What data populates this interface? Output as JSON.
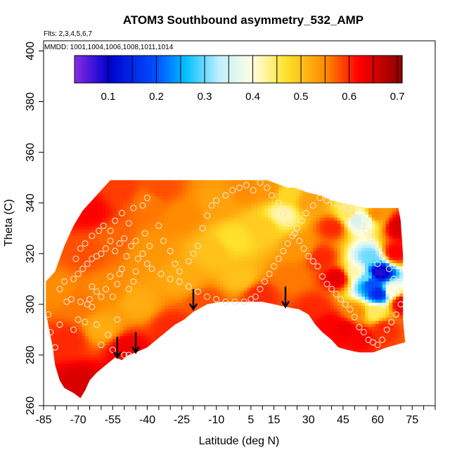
{
  "chart_data": {
    "type": "heatmap",
    "title": "ATOM3 Southbound asymmetry_532_AMP",
    "flights_label": "Flts: 2,3,4,5,6,7",
    "dates_label": "MMDD: 1001,1004,1006,1008,1011,1014",
    "xlabel": "Latitude (deg N)",
    "ylabel": "Theta (C)",
    "xlim": [
      -85,
      85
    ],
    "ylim": [
      260,
      404
    ],
    "x_ticks": [
      -85,
      -70,
      -55,
      -40,
      -25,
      -10,
      5,
      15,
      30,
      45,
      60,
      75
    ],
    "x_tick_labels": [
      "-85",
      "-70",
      "-55",
      "-40",
      "-25",
      "-10",
      "5",
      "15",
      "30",
      "45",
      "60",
      "75"
    ],
    "y_ticks": [
      260,
      280,
      300,
      320,
      340,
      360,
      380,
      400
    ],
    "y_tick_labels": [
      "260",
      "280",
      "300",
      "320",
      "340",
      "360",
      "380",
      "400"
    ],
    "colorbar": {
      "range": [
        0.03,
        0.71
      ],
      "ticks": [
        0.1,
        0.2,
        0.3,
        0.4,
        0.5,
        0.6,
        0.7
      ],
      "tick_labels": [
        "0.1",
        "0.2",
        "0.3",
        "0.4",
        "0.5",
        "0.6",
        "0.7"
      ],
      "colors": [
        {
          "v": 0.03,
          "c": "#8a2be2"
        },
        {
          "v": 0.1,
          "c": "#0000cd"
        },
        {
          "v": 0.2,
          "c": "#0050ff"
        },
        {
          "v": 0.26,
          "c": "#00bfff"
        },
        {
          "v": 0.33,
          "c": "#bfefff"
        },
        {
          "v": 0.4,
          "c": "#ffffe0"
        },
        {
          "v": 0.47,
          "c": "#ffe12a"
        },
        {
          "v": 0.55,
          "c": "#ff8c00"
        },
        {
          "v": 0.62,
          "c": "#ff0000"
        },
        {
          "v": 0.71,
          "c": "#8b0000"
        }
      ]
    },
    "coverage_top": [
      [
        -84,
        309
      ],
      [
        -80,
        313
      ],
      [
        -76,
        323
      ],
      [
        -72,
        331
      ],
      [
        -68,
        337
      ],
      [
        -64,
        341
      ],
      [
        -60,
        345
      ],
      [
        -56,
        349
      ],
      [
        -30,
        349
      ],
      [
        0,
        349
      ],
      [
        12,
        349
      ],
      [
        15,
        348
      ],
      [
        18,
        347
      ],
      [
        21,
        346
      ],
      [
        24,
        346
      ],
      [
        27,
        345
      ],
      [
        30,
        344
      ],
      [
        35,
        343
      ],
      [
        40,
        341
      ],
      [
        45,
        340
      ],
      [
        50,
        339
      ],
      [
        55,
        338
      ],
      [
        60,
        338
      ],
      [
        65,
        338
      ],
      [
        69,
        338
      ],
      [
        70,
        333
      ],
      [
        71,
        320
      ],
      [
        71,
        305
      ],
      [
        71,
        294
      ],
      [
        72,
        285
      ]
    ],
    "coverage_bottom": [
      [
        -84,
        309
      ],
      [
        -84,
        297
      ],
      [
        -83,
        292
      ],
      [
        -81,
        283
      ],
      [
        -80,
        276
      ],
      [
        -78,
        270
      ],
      [
        -76,
        267
      ],
      [
        -72,
        265
      ],
      [
        -69,
        263
      ],
      [
        -67,
        266
      ],
      [
        -65,
        270
      ],
      [
        -62,
        273
      ],
      [
        -58,
        276
      ],
      [
        -54,
        279
      ],
      [
        -51,
        278
      ],
      [
        -48,
        280
      ],
      [
        -45,
        281
      ],
      [
        -40,
        283
      ],
      [
        -36,
        286
      ],
      [
        -32,
        289
      ],
      [
        -28,
        292
      ],
      [
        -24,
        294
      ],
      [
        -20,
        297
      ],
      [
        -14,
        300
      ],
      [
        -8,
        301
      ],
      [
        0,
        301
      ],
      [
        6,
        301
      ],
      [
        10,
        301
      ],
      [
        15,
        300
      ],
      [
        20,
        299
      ],
      [
        26,
        298
      ],
      [
        30,
        296
      ],
      [
        33,
        292
      ],
      [
        36,
        289
      ],
      [
        40,
        286
      ],
      [
        43,
        283
      ],
      [
        47,
        282
      ],
      [
        52,
        281
      ],
      [
        58,
        281
      ],
      [
        64,
        283
      ],
      [
        68,
        284
      ],
      [
        72,
        285
      ]
    ],
    "field_points": [
      {
        "x": -80,
        "y": 305,
        "v": 0.55
      },
      {
        "x": -75,
        "y": 285,
        "v": 0.6
      },
      {
        "x": -70,
        "y": 268,
        "v": 0.65
      },
      {
        "x": -70,
        "y": 300,
        "v": 0.56
      },
      {
        "x": -68,
        "y": 320,
        "v": 0.58
      },
      {
        "x": -66,
        "y": 336,
        "v": 0.62
      },
      {
        "x": -60,
        "y": 290,
        "v": 0.52
      },
      {
        "x": -58,
        "y": 305,
        "v": 0.55
      },
      {
        "x": -55,
        "y": 325,
        "v": 0.57
      },
      {
        "x": -52,
        "y": 345,
        "v": 0.59
      },
      {
        "x": -50,
        "y": 282,
        "v": 0.63
      },
      {
        "x": -45,
        "y": 300,
        "v": 0.52
      },
      {
        "x": -40,
        "y": 320,
        "v": 0.54
      },
      {
        "x": -40,
        "y": 340,
        "v": 0.56
      },
      {
        "x": -30,
        "y": 290,
        "v": 0.6
      },
      {
        "x": -25,
        "y": 310,
        "v": 0.52
      },
      {
        "x": -25,
        "y": 335,
        "v": 0.55
      },
      {
        "x": -15,
        "y": 300,
        "v": 0.58
      },
      {
        "x": -12,
        "y": 320,
        "v": 0.5
      },
      {
        "x": -10,
        "y": 340,
        "v": 0.53
      },
      {
        "x": -3,
        "y": 325,
        "v": 0.47
      },
      {
        "x": 0,
        "y": 310,
        "v": 0.5
      },
      {
        "x": 2,
        "y": 345,
        "v": 0.55
      },
      {
        "x": 8,
        "y": 303,
        "v": 0.6
      },
      {
        "x": 10,
        "y": 330,
        "v": 0.49
      },
      {
        "x": 18,
        "y": 335,
        "v": 0.42
      },
      {
        "x": 20,
        "y": 343,
        "v": 0.48
      },
      {
        "x": 22,
        "y": 310,
        "v": 0.56
      },
      {
        "x": 26,
        "y": 322,
        "v": 0.54
      },
      {
        "x": 30,
        "y": 340,
        "v": 0.53
      },
      {
        "x": 32,
        "y": 298,
        "v": 0.6
      },
      {
        "x": 35,
        "y": 318,
        "v": 0.6
      },
      {
        "x": 38,
        "y": 292,
        "v": 0.62
      },
      {
        "x": 40,
        "y": 330,
        "v": 0.6
      },
      {
        "x": 42,
        "y": 310,
        "v": 0.64
      },
      {
        "x": 45,
        "y": 290,
        "v": 0.63
      },
      {
        "x": 47,
        "y": 335,
        "v": 0.45
      },
      {
        "x": 50,
        "y": 333,
        "v": 0.35
      },
      {
        "x": 54,
        "y": 333,
        "v": 0.38
      },
      {
        "x": 58,
        "y": 335,
        "v": 0.55
      },
      {
        "x": 50,
        "y": 312,
        "v": 0.42
      },
      {
        "x": 54,
        "y": 310,
        "v": 0.3
      },
      {
        "x": 56,
        "y": 308,
        "v": 0.2
      },
      {
        "x": 60,
        "y": 312,
        "v": 0.08
      },
      {
        "x": 60,
        "y": 304,
        "v": 0.15
      },
      {
        "x": 56,
        "y": 318,
        "v": 0.3
      },
      {
        "x": 58,
        "y": 296,
        "v": 0.45
      },
      {
        "x": 50,
        "y": 296,
        "v": 0.55
      },
      {
        "x": 52,
        "y": 287,
        "v": 0.62
      },
      {
        "x": 62,
        "y": 290,
        "v": 0.6
      },
      {
        "x": 65,
        "y": 305,
        "v": 0.4
      },
      {
        "x": 67,
        "y": 320,
        "v": 0.62
      },
      {
        "x": 69,
        "y": 330,
        "v": 0.65
      },
      {
        "x": 70,
        "y": 300,
        "v": 0.64
      },
      {
        "x": -35,
        "y": 345,
        "v": 0.58
      },
      {
        "x": 12,
        "y": 345,
        "v": 0.54
      }
    ],
    "observations": [
      [
        -60,
        284
      ],
      [
        -55,
        282
      ],
      [
        -50,
        280
      ],
      [
        -48,
        280
      ],
      [
        -53,
        294
      ],
      [
        -57,
        288
      ],
      [
        -62,
        292
      ],
      [
        -64,
        299
      ],
      [
        -67,
        293
      ],
      [
        -70,
        294
      ],
      [
        -72,
        290
      ],
      [
        -75,
        301
      ],
      [
        -78,
        292
      ],
      [
        -80,
        283
      ],
      [
        -82,
        289
      ],
      [
        -83,
        296
      ],
      [
        -78,
        306
      ],
      [
        -76,
        309
      ],
      [
        -72,
        310
      ],
      [
        -73,
        302
      ],
      [
        -69,
        301
      ],
      [
        -66,
        300
      ],
      [
        -65,
        302
      ],
      [
        -64,
        307
      ],
      [
        -62,
        305
      ],
      [
        -60,
        303
      ],
      [
        -58,
        306
      ],
      [
        -56,
        311
      ],
      [
        -55,
        303
      ],
      [
        -53,
        308
      ],
      [
        -52,
        312
      ],
      [
        -51,
        314
      ],
      [
        -49,
        319
      ],
      [
        -48,
        306
      ],
      [
        -46,
        309
      ],
      [
        -45,
        313
      ],
      [
        -44,
        318
      ],
      [
        -42,
        320
      ],
      [
        -40,
        316
      ],
      [
        -39,
        323
      ],
      [
        -41,
        328
      ],
      [
        -45,
        325
      ],
      [
        -47,
        323
      ],
      [
        -50,
        326
      ],
      [
        -52,
        324
      ],
      [
        -54,
        321
      ],
      [
        -56,
        325
      ],
      [
        -58,
        322
      ],
      [
        -60,
        320
      ],
      [
        -62,
        319
      ],
      [
        -64,
        318
      ],
      [
        -66,
        316
      ],
      [
        -68,
        314
      ],
      [
        -70,
        312
      ],
      [
        -71,
        318
      ],
      [
        -69,
        322
      ],
      [
        -67,
        324
      ],
      [
        -64,
        327
      ],
      [
        -61,
        329
      ],
      [
        -59,
        331
      ],
      [
        -56,
        329
      ],
      [
        -54,
        333
      ],
      [
        -51,
        336
      ],
      [
        -48,
        332
      ],
      [
        -46,
        338
      ],
      [
        -42,
        339
      ],
      [
        -40,
        342
      ],
      [
        -35,
        331
      ],
      [
        -33,
        325
      ],
      [
        -30,
        321
      ],
      [
        -28,
        316
      ],
      [
        -26,
        313
      ],
      [
        -22,
        317
      ],
      [
        -20,
        320
      ],
      [
        -18,
        323
      ],
      [
        -16,
        330
      ],
      [
        -14,
        335
      ],
      [
        -12,
        339
      ],
      [
        -10,
        341
      ],
      [
        -6,
        343
      ],
      [
        -3,
        345
      ],
      [
        0,
        346
      ],
      [
        3,
        347
      ],
      [
        6,
        345
      ],
      [
        9,
        348
      ],
      [
        12,
        346
      ],
      [
        14,
        343
      ],
      [
        17,
        340
      ],
      [
        19,
        336
      ],
      [
        22,
        332
      ],
      [
        24,
        328
      ],
      [
        26,
        325
      ],
      [
        28,
        322
      ],
      [
        30,
        319
      ],
      [
        32,
        317
      ],
      [
        34,
        315
      ],
      [
        36,
        311
      ],
      [
        38,
        308
      ],
      [
        40,
        306
      ],
      [
        42,
        304
      ],
      [
        44,
        302
      ],
      [
        46,
        300
      ],
      [
        48,
        298
      ],
      [
        50,
        295
      ],
      [
        52,
        291
      ],
      [
        54,
        289
      ],
      [
        56,
        286
      ],
      [
        58,
        285
      ],
      [
        60,
        284
      ],
      [
        62,
        286
      ],
      [
        64,
        290
      ],
      [
        66,
        293
      ],
      [
        68,
        296
      ],
      [
        70,
        300
      ],
      [
        69,
        305
      ],
      [
        67,
        310
      ],
      [
        65,
        314
      ],
      [
        63,
        318
      ],
      [
        61,
        320
      ],
      [
        59,
        323
      ],
      [
        57,
        326
      ],
      [
        55,
        329
      ],
      [
        53,
        331
      ],
      [
        51,
        334
      ],
      [
        49,
        336
      ],
      [
        47,
        338
      ],
      [
        44,
        339
      ],
      [
        41,
        340
      ],
      [
        38,
        341
      ],
      [
        35,
        342
      ],
      [
        32,
        339
      ],
      [
        29,
        336
      ],
      [
        27,
        333
      ],
      [
        25,
        330
      ],
      [
        23,
        327
      ],
      [
        21,
        324
      ],
      [
        19,
        321
      ],
      [
        17,
        318
      ],
      [
        15,
        315
      ],
      [
        13,
        312
      ],
      [
        11,
        309
      ],
      [
        9,
        306
      ],
      [
        7,
        303
      ],
      [
        5,
        302
      ],
      [
        2,
        301
      ],
      [
        -2,
        301
      ],
      [
        -6,
        301
      ],
      [
        -10,
        302
      ],
      [
        -14,
        303
      ],
      [
        -18,
        305
      ],
      [
        -22,
        307
      ],
      [
        -26,
        309
      ],
      [
        -30,
        310
      ],
      [
        -34,
        312
      ],
      [
        -38,
        314
      ],
      [
        60,
        316
      ]
    ],
    "arrows": [
      [
        -53,
        284
      ],
      [
        -45,
        286
      ],
      [
        -20,
        303
      ],
      [
        20,
        304
      ]
    ]
  }
}
